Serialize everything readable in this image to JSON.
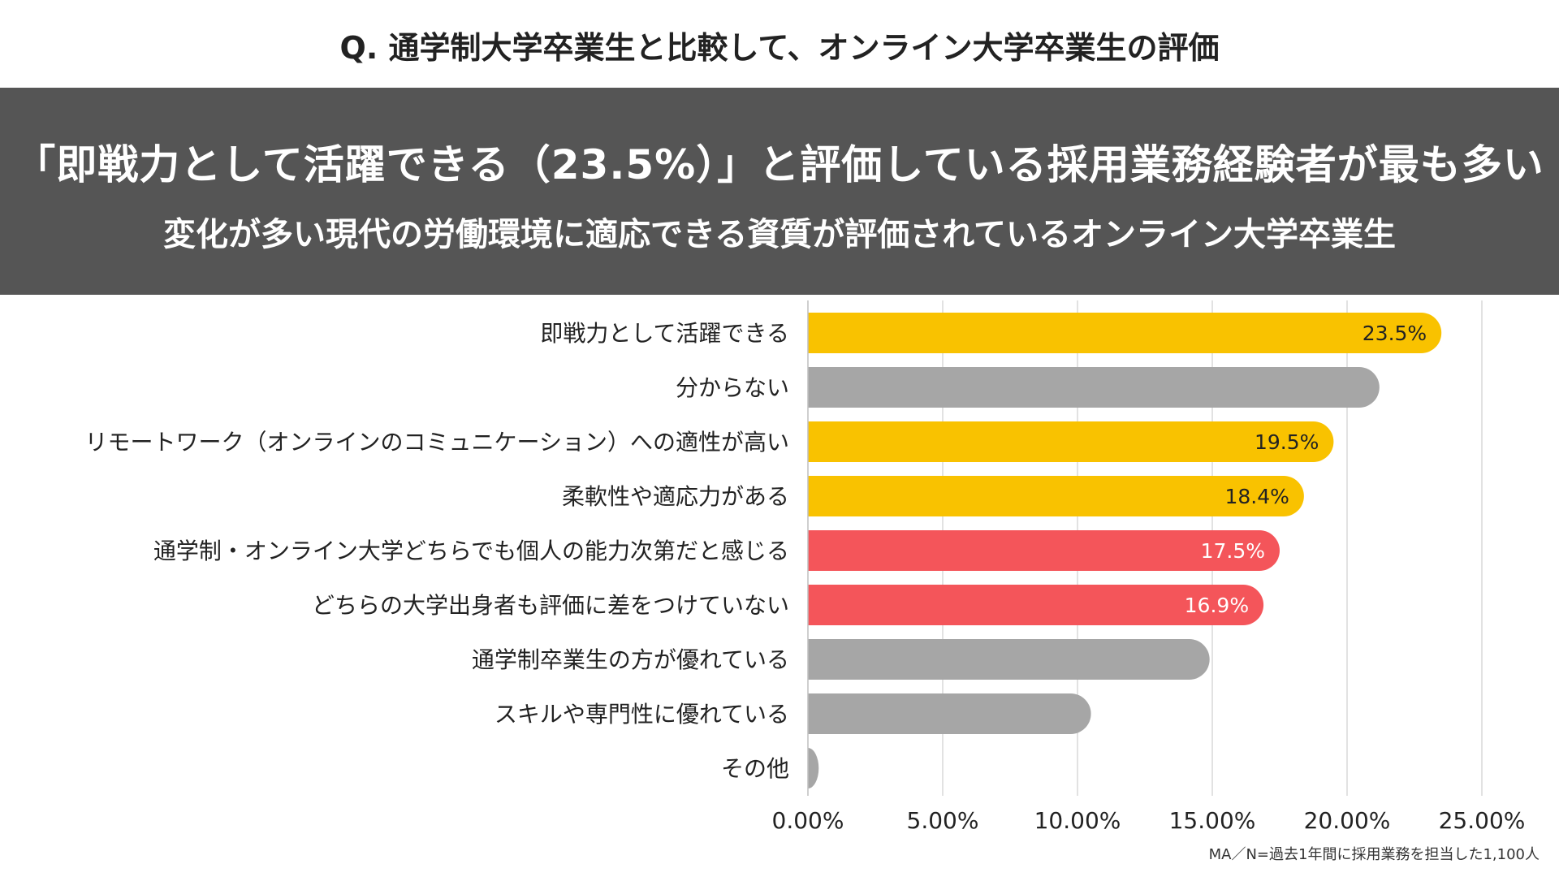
{
  "question": "Q. 通学制大学卒業生と比較して、オンライン大学卒業生の評価",
  "headline": "「即戦力として活躍できる（23.5%）」と評価している採用業務経験者が最も多い",
  "subline": "変化が多い現代の労働環境に適応できる資質が評価されているオンライン大学卒業生",
  "footnote": "MA／N=過去1年間に採用業務を担当した1,100人",
  "colors": {
    "highlight_yellow": "#F9C200",
    "highlight_red": "#F4555A",
    "neutral_gray": "#A6A6A6",
    "banner": "#555555",
    "grid": "#D9D9D9"
  },
  "chart_data": {
    "type": "bar",
    "orientation": "horizontal",
    "categories": [
      "即戦力として活躍できる",
      "分からない",
      "リモートワーク（オンラインのコミュニケーション）への適性が高い",
      "柔軟性や適応力がある",
      "通学制・オンライン大学どちらでも個人の能力次第だと感じる",
      "どちらの大学出身者も評価に差をつけていない",
      "通学制卒業生の方が優れている",
      "スキルや専門性に優れている",
      "その他"
    ],
    "values": [
      23.5,
      21.2,
      19.5,
      18.4,
      17.5,
      16.9,
      14.9,
      10.5,
      0.4
    ],
    "data_labels": [
      "23.5%",
      "",
      "19.5%",
      "18.4%",
      "17.5%",
      "16.9%",
      "",
      "",
      ""
    ],
    "bar_colors": [
      "yellow",
      "gray",
      "yellow",
      "yellow",
      "red",
      "red",
      "gray",
      "gray",
      "gray"
    ],
    "xlim": [
      0,
      25
    ],
    "xticks": [
      0,
      5,
      10,
      15,
      20,
      25
    ],
    "xtick_labels": [
      "0.00%",
      "5.00%",
      "10.00%",
      "15.00%",
      "20.00%",
      "25.00%"
    ],
    "grid": "vertical",
    "xlabel": "",
    "ylabel": ""
  }
}
